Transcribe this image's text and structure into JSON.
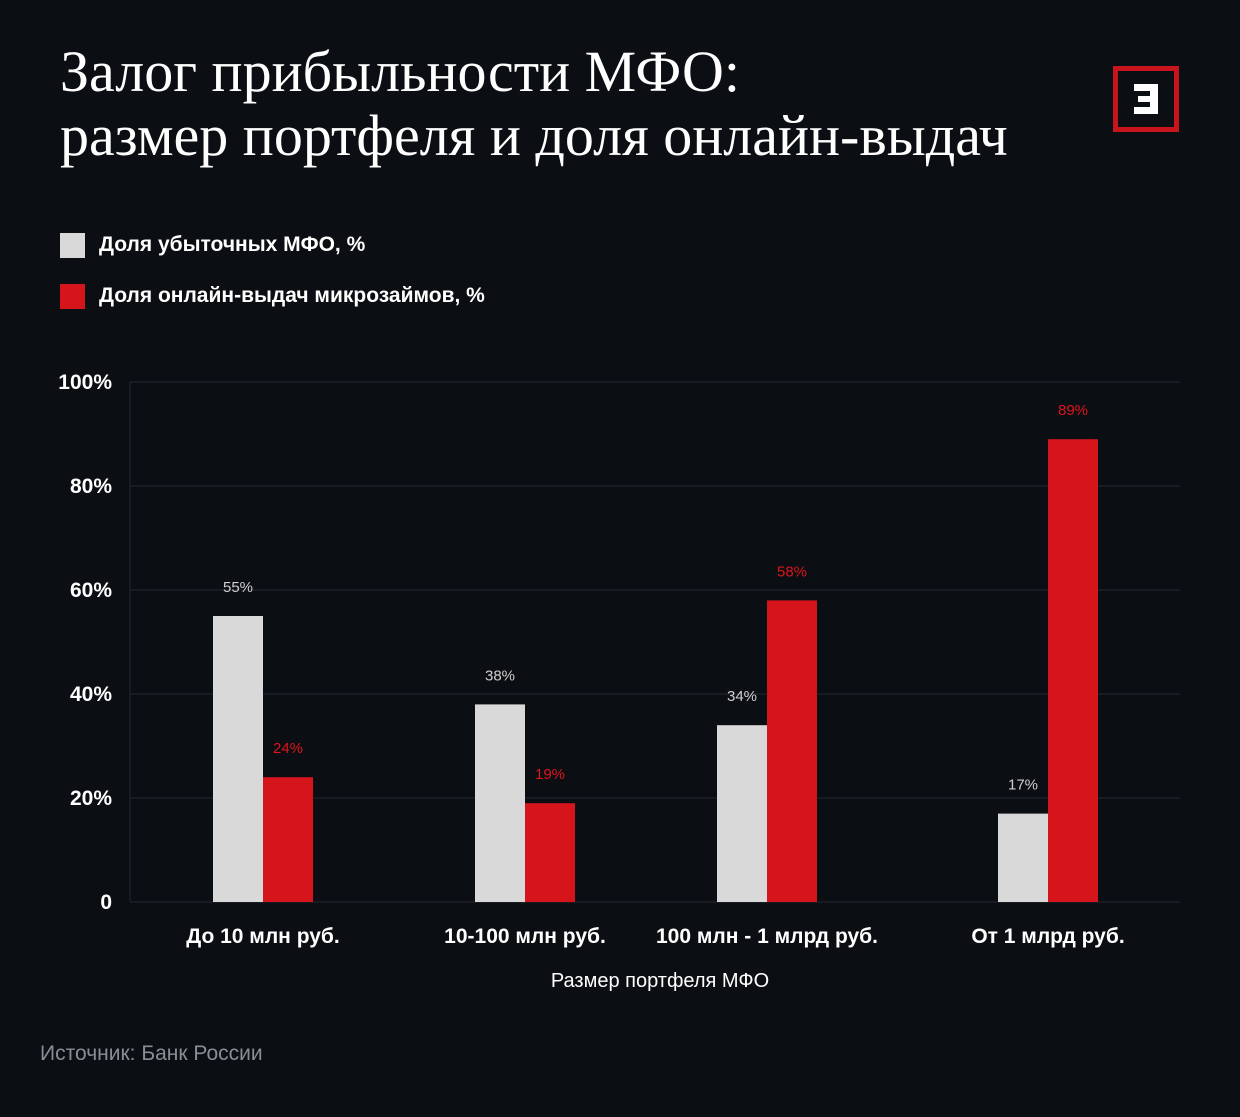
{
  "header": {
    "title_line1": "Залог прибыльности МФО:",
    "title_line2": "размер портфеля и доля онлайн-выдач",
    "logo": "Э-logo-icon"
  },
  "colors": {
    "background": "#0b0e12",
    "series_loss": "#d9d9d9",
    "series_online": "#d6141c",
    "grid": "#1c2027",
    "muted": "#8a8e94"
  },
  "chart_data": {
    "type": "bar",
    "categories": [
      "До 10 млн руб.",
      "10-100 млн руб.",
      "100 млн - 1 млрд руб.",
      "От 1 млрд руб."
    ],
    "series": [
      {
        "name": "Доля убыточных МФО, %",
        "values": [
          55,
          38,
          34,
          17
        ],
        "labels": [
          "55%",
          "38%",
          "34%",
          "17%"
        ],
        "color": "#d9d9d9"
      },
      {
        "name": "Доля онлайн-выдач микрозаймов, %",
        "values": [
          24,
          19,
          58,
          89
        ],
        "labels": [
          "24%",
          "19%",
          "58%",
          "89%"
        ],
        "color": "#d6141c"
      }
    ],
    "yticks": [
      0,
      20,
      40,
      60,
      80,
      100
    ],
    "ytick_labels": [
      "0",
      "20%",
      "40%",
      "60%",
      "80%",
      "100%"
    ],
    "ylim": [
      0,
      100
    ],
    "xlabel": "Размер портфеля МФО",
    "ylabel": "",
    "grid": true,
    "legend": "top-left"
  },
  "footer": {
    "source": "Источник: Банк России"
  }
}
